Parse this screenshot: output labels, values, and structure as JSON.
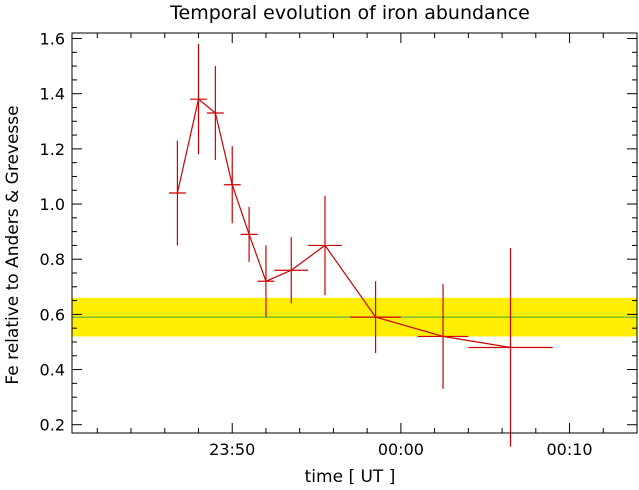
{
  "chart_data": {
    "type": "line",
    "title": "Temporal evolution of iron abundance",
    "xlabel": "time [ UT ]",
    "ylabel": "Fe relative to Anders & Grevesse",
    "xlim": [
      "23:40:30",
      "00:14:00"
    ],
    "ylim": [
      0.17,
      1.62
    ],
    "x_ticks": [
      {
        "value": "23:50",
        "label": "23:50"
      },
      {
        "value": "00:00",
        "label": "00:00"
      },
      {
        "value": "00:10",
        "label": "00:10"
      }
    ],
    "y_ticks": [
      "0.2",
      "0.4",
      "0.6",
      "0.8",
      "1.0",
      "1.2",
      "1.4",
      "1.6"
    ],
    "series": [
      {
        "color": "#cc0000",
        "points": [
          {
            "x": "23:46:45",
            "x_start": "23:46:15",
            "x_end": "23:47:15",
            "y": 1.04,
            "y_err": 0.19
          },
          {
            "x": "23:48:00",
            "x_start": "23:47:30",
            "x_end": "23:48:30",
            "y": 1.38,
            "y_err": 0.2
          },
          {
            "x": "23:49:00",
            "x_start": "23:48:30",
            "x_end": "23:49:30",
            "y": 1.33,
            "y_err": 0.17
          },
          {
            "x": "23:50:00",
            "x_start": "23:49:30",
            "x_end": "23:50:30",
            "y": 1.07,
            "y_err": 0.14
          },
          {
            "x": "23:51:00",
            "x_start": "23:50:30",
            "x_end": "23:51:30",
            "y": 0.89,
            "y_err": 0.1
          },
          {
            "x": "23:52:00",
            "x_start": "23:51:30",
            "x_end": "23:52:30",
            "y": 0.72,
            "y_err": 0.13
          },
          {
            "x": "23:53:30",
            "x_start": "23:52:30",
            "x_end": "23:54:30",
            "y": 0.76,
            "y_err": 0.12
          },
          {
            "x": "23:55:30",
            "x_start": "23:54:30",
            "x_end": "23:56:30",
            "y": 0.85,
            "y_err": 0.18
          },
          {
            "x": "23:58:30",
            "x_start": "23:57:00",
            "x_end": "00:00:00",
            "y": 0.59,
            "y_err": 0.13
          },
          {
            "x": "00:02:30",
            "x_start": "00:01:00",
            "x_end": "00:04:00",
            "y": 0.52,
            "y_err": 0.19
          },
          {
            "x": "00:06:30",
            "x_start": "00:04:00",
            "x_end": "00:09:00",
            "y": 0.48,
            "y_err": 0.36
          }
        ]
      }
    ],
    "reference_band": {
      "center": 0.59,
      "low": 0.52,
      "high": 0.66,
      "fill_color": "#ffee00",
      "line_color": "#33aa33"
    },
    "grid": false
  }
}
